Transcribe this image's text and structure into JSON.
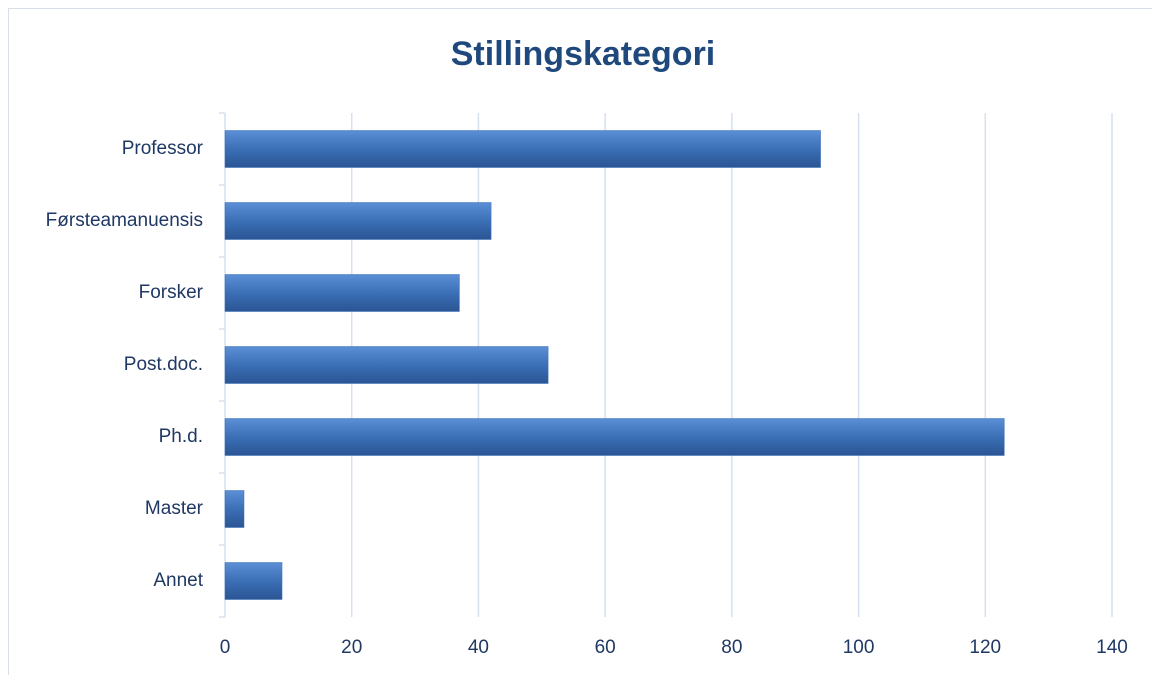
{
  "chart_data": {
    "type": "barh",
    "title": "Stillingskategori",
    "categories": [
      "Professor",
      "Førsteamanuensis",
      "Forsker",
      "Post.doc.",
      "Ph.d.",
      "Master",
      "Annet"
    ],
    "values": [
      94,
      42,
      37,
      51,
      123,
      3,
      9
    ],
    "color": "#3b6fb6",
    "xlim": [
      0,
      140
    ],
    "xticks": [
      0,
      20,
      40,
      60,
      80,
      100,
      120,
      140
    ],
    "grid": true
  }
}
